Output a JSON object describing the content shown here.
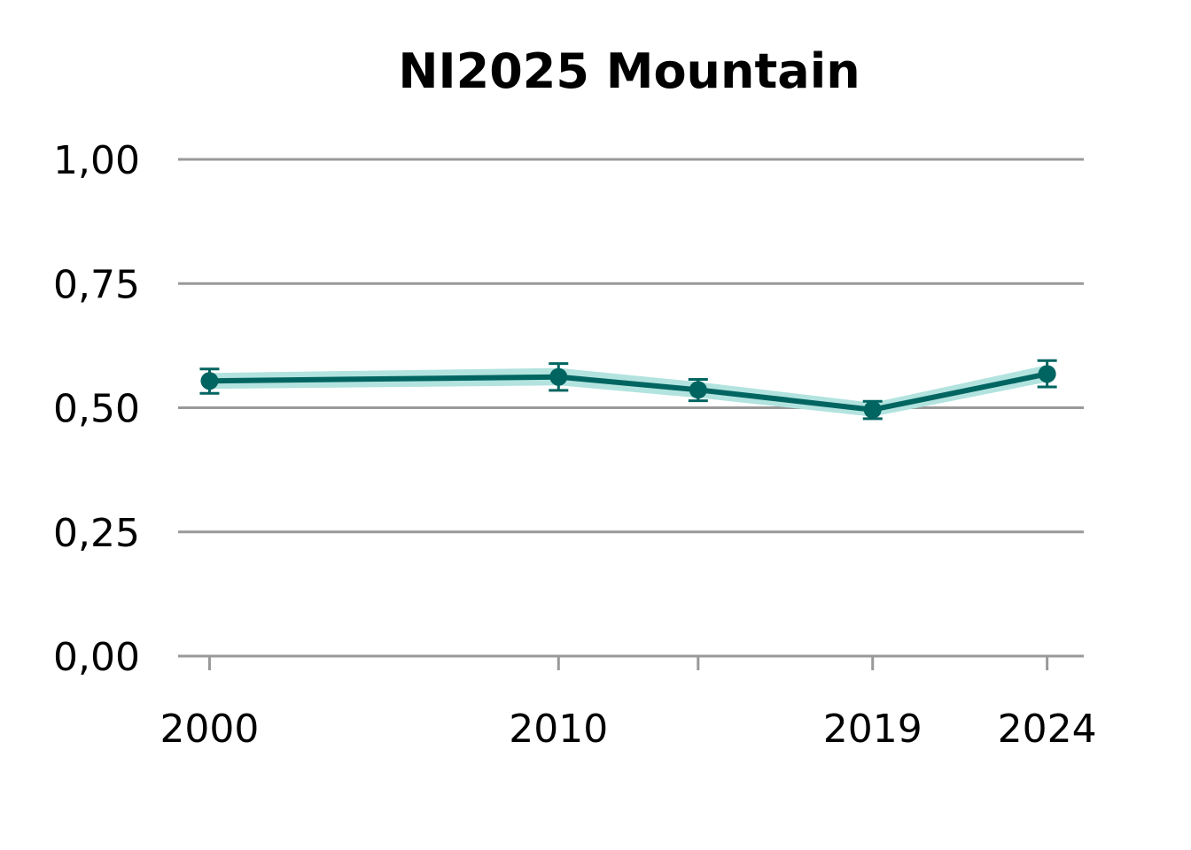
{
  "chart_data": {
    "type": "line",
    "title": "NI2025 Mountain",
    "xlabel": "",
    "ylabel": "",
    "ylim": [
      0,
      1
    ],
    "xlim": [
      1999.1,
      2025.05
    ],
    "grid": "horizontal",
    "y_ticks": [
      {
        "value": 0.0,
        "label": "0,00"
      },
      {
        "value": 0.25,
        "label": "0,25"
      },
      {
        "value": 0.5,
        "label": "0,50"
      },
      {
        "value": 0.75,
        "label": "0,75"
      },
      {
        "value": 1.0,
        "label": "1,00"
      }
    ],
    "x_ticks": [
      {
        "value": 2000,
        "label": "2000"
      },
      {
        "value": 2010,
        "label": "2010"
      },
      {
        "value": 2014,
        "label": ""
      },
      {
        "value": 2019,
        "label": "2019"
      },
      {
        "value": 2024,
        "label": "2024"
      }
    ],
    "series": [
      {
        "x": [
          2000,
          2010,
          2014,
          2019,
          2024
        ],
        "y": [
          0.554,
          0.562,
          0.536,
          0.496,
          0.568
        ],
        "lower": [
          0.529,
          0.535,
          0.514,
          0.478,
          0.542
        ],
        "upper": [
          0.578,
          0.589,
          0.557,
          0.513,
          0.595
        ],
        "band_lower": [
          0.538,
          0.545,
          0.52,
          0.482,
          0.552
        ],
        "band_upper": [
          0.57,
          0.58,
          0.552,
          0.51,
          0.586
        ]
      }
    ]
  },
  "colors": {
    "line": "#006561",
    "band": "#b2e3df",
    "grid": "#999999",
    "text": "#000000"
  }
}
